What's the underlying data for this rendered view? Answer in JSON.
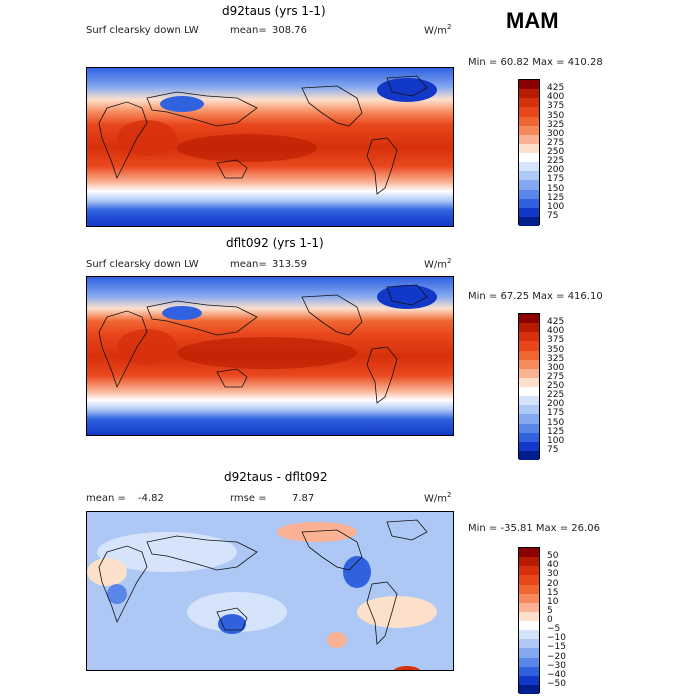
{
  "season": "MAM",
  "chart_data": [
    {
      "type": "heatmap",
      "title": "d92taus (yrs 1-1)",
      "subtitle": "Surf clearsky down LW",
      "stat_label": "mean=",
      "stat_value": "308.76",
      "units": "W/m",
      "units_sup": "2",
      "minmax_text": "Min =  60.82 Max = 410.28",
      "colorbar": {
        "labels": [
          "425",
          "400",
          "375",
          "350",
          "325",
          "300",
          "275",
          "250",
          "225",
          "200",
          "175",
          "150",
          "125",
          "100",
          "75"
        ],
        "colors": [
          "#8b0000",
          "#b71c00",
          "#d7300c",
          "#e8471c",
          "#f06632",
          "#f68a5c",
          "#fab194",
          "#fde0cc",
          "#ffffff",
          "#d5e4fb",
          "#aec8f6",
          "#84a8f0",
          "#5a86ea",
          "#3062e0",
          "#1238c8",
          "#001e8c"
        ]
      }
    },
    {
      "type": "heatmap",
      "title": "dflt092 (yrs 1-1)",
      "subtitle": "Surf clearsky down LW",
      "stat_label": "mean=",
      "stat_value": "313.59",
      "units": "W/m",
      "units_sup": "2",
      "minmax_text": "Min =  67.25 Max = 416.10",
      "colorbar": {
        "labels": [
          "425",
          "400",
          "375",
          "350",
          "325",
          "300",
          "275",
          "250",
          "225",
          "200",
          "175",
          "150",
          "125",
          "100",
          "75"
        ],
        "colors": [
          "#8b0000",
          "#b71c00",
          "#d7300c",
          "#e8471c",
          "#f06632",
          "#f68a5c",
          "#fab194",
          "#fde0cc",
          "#ffffff",
          "#d5e4fb",
          "#aec8f6",
          "#84a8f0",
          "#5a86ea",
          "#3062e0",
          "#1238c8",
          "#001e8c"
        ]
      }
    },
    {
      "type": "heatmap",
      "title": "d92taus - dflt092",
      "mean_label": "mean =",
      "mean_value": "-4.82",
      "rmse_label": "rmse =",
      "rmse_value": "7.87",
      "units": "W/m",
      "units_sup": "2",
      "minmax_text": "Min = -35.81 Max =  26.06",
      "colorbar": {
        "labels": [
          "50",
          "40",
          "30",
          "20",
          "15",
          "10",
          "5",
          "0",
          "−5",
          "−10",
          "−15",
          "−20",
          "−30",
          "−40",
          "−50"
        ],
        "colors": [
          "#8b0000",
          "#b71c00",
          "#d7300c",
          "#e8471c",
          "#f06632",
          "#f68a5c",
          "#fab194",
          "#fde0cc",
          "#ffffff",
          "#d5e4fb",
          "#aec8f6",
          "#84a8f0",
          "#5a86ea",
          "#3062e0",
          "#1238c8",
          "#001e8c"
        ]
      }
    }
  ]
}
